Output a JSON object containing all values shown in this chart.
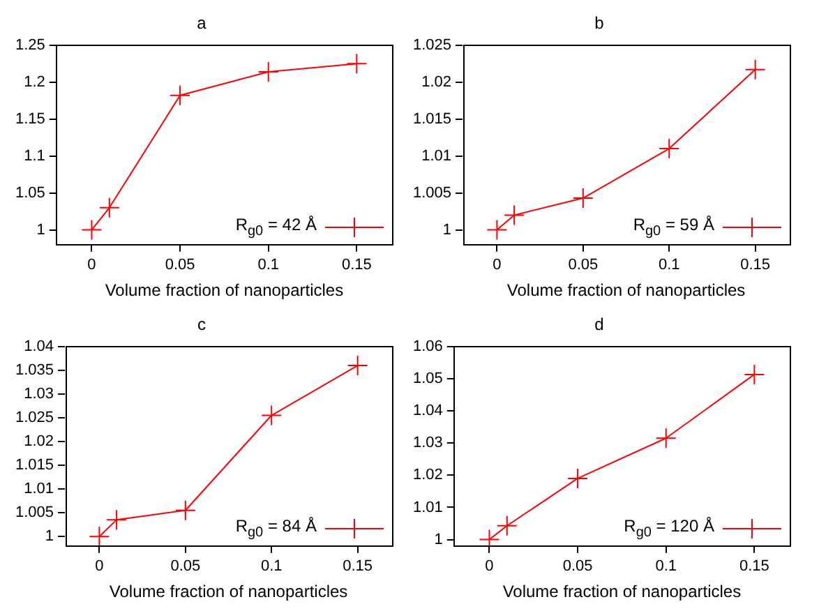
{
  "chart_data": [
    {
      "type": "line",
      "title": "a",
      "xlabel": "Volume fraction of nanoparticles",
      "x": [
        0,
        0.01,
        0.05,
        0.1,
        0.15
      ],
      "xlim": [
        -0.02,
        0.17
      ],
      "xticks": [
        0,
        0.05,
        0.1,
        0.15
      ],
      "ylim": [
        0.98,
        1.25
      ],
      "yticks": [
        1,
        1.05,
        1.1,
        1.15,
        1.2,
        1.25
      ],
      "grid": false,
      "legend": "bottom right",
      "marker": "cross",
      "line_style": "solid",
      "series": [
        {
          "name": "R$_{g0}$ = 42 Å",
          "color": "#ff0000",
          "values": [
            1.0,
            1.03,
            1.182,
            1.214,
            1.225
          ]
        }
      ]
    },
    {
      "type": "line",
      "title": "b",
      "xlabel": "Volume fraction of nanoparticles",
      "x": [
        0,
        0.01,
        0.05,
        0.1,
        0.15
      ],
      "xlim": [
        -0.02,
        0.17
      ],
      "xticks": [
        0,
        0.05,
        0.1,
        0.15
      ],
      "ylim": [
        0.998,
        1.025
      ],
      "yticks": [
        1,
        1.005,
        1.01,
        1.015,
        1.02,
        1.025
      ],
      "grid": false,
      "legend": "bottom right",
      "marker": "cross",
      "line_style": "solid",
      "series": [
        {
          "name": "R$_{g0}$ = 59 Å",
          "color": "#ff0000",
          "values": [
            1.0,
            1.002,
            1.0043,
            1.011,
            1.0217
          ]
        }
      ]
    },
    {
      "type": "line",
      "title": "c",
      "xlabel": "Volume fraction of nanoparticles",
      "x": [
        0,
        0.01,
        0.05,
        0.1,
        0.15
      ],
      "xlim": [
        -0.02,
        0.17
      ],
      "xticks": [
        0,
        0.05,
        0.1,
        0.15
      ],
      "ylim": [
        0.998,
        1.04
      ],
      "yticks": [
        1,
        1.005,
        1.01,
        1.015,
        1.02,
        1.025,
        1.03,
        1.035,
        1.04
      ],
      "grid": false,
      "legend": "bottom right",
      "marker": "cross",
      "line_style": "solid",
      "series": [
        {
          "name": "R$_{g0}$ = 84 Å",
          "color": "#ff0000",
          "values": [
            1.0,
            1.0035,
            1.0055,
            1.0255,
            1.036
          ]
        }
      ]
    },
    {
      "type": "line",
      "title": "d",
      "xlabel": "Volume fraction of nanoparticles",
      "x": [
        0,
        0.01,
        0.05,
        0.1,
        0.15
      ],
      "xlim": [
        -0.02,
        0.17
      ],
      "xticks": [
        0,
        0.05,
        0.1,
        0.15
      ],
      "ylim": [
        0.998,
        1.06
      ],
      "yticks": [
        1,
        1.01,
        1.02,
        1.03,
        1.04,
        1.05,
        1.06
      ],
      "grid": false,
      "legend": "bottom right",
      "marker": "cross",
      "line_style": "solid",
      "series": [
        {
          "name": "R$_{g0}$ = 120 Å",
          "color": "#ff0000",
          "values": [
            1.0,
            1.0043,
            1.019,
            1.0315,
            1.0513
          ]
        }
      ]
    }
  ]
}
